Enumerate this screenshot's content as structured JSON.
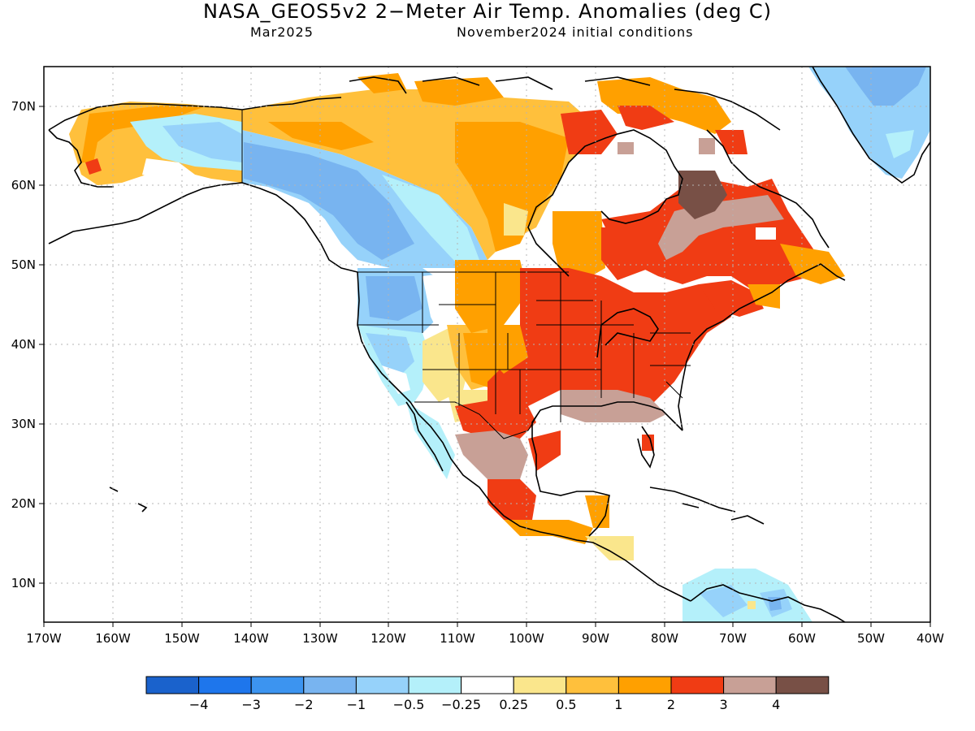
{
  "title": "NASA_GEOS5v2 2−Meter Air Temp. Anomalies (deg C)",
  "valid_month": "Mar2025",
  "init_conditions": "November2024 initial conditions",
  "lon_ticks": [
    "170W",
    "160W",
    "150W",
    "140W",
    "130W",
    "120W",
    "110W",
    "100W",
    "90W",
    "80W",
    "70W",
    "60W",
    "50W",
    "40W"
  ],
  "lat_ticks": [
    "70N",
    "60N",
    "50N",
    "40N",
    "30N",
    "20N",
    "10N"
  ],
  "colorbar": {
    "colors": [
      "#1a62cc",
      "#1e76ec",
      "#3c94f0",
      "#78b4f0",
      "#96d2fa",
      "#b4f0fa",
      "#ffffff",
      "#fae68c",
      "#ffc03c",
      "#ffa000",
      "#f03c14",
      "#c8a096",
      "#785046"
    ],
    "labels": [
      "−4",
      "−3",
      "−2",
      "−1",
      "−0.5",
      "−0.25",
      "0.25",
      "0.5",
      "1",
      "2",
      "3",
      "4"
    ]
  },
  "regions": [
    {
      "name": "alaska",
      "anomaly": "0.5 to 2"
    },
    {
      "name": "western-canada",
      "anomaly": "-0.25 to -2"
    },
    {
      "name": "northern-canada",
      "anomaly": "0.5 to 2"
    },
    {
      "name": "pacific-northwest-us",
      "anomaly": "-0.5 to -1"
    },
    {
      "name": "california-great-basin",
      "anomaly": "-0.25 to -0.5"
    },
    {
      "name": "central-eastern-us",
      "anomaly": "2 to 3"
    },
    {
      "name": "gulf-coast-northern-mexico",
      "anomaly": "3 to 4"
    },
    {
      "name": "quebec-labrador",
      "anomaly": "3 to >4"
    },
    {
      "name": "greenland",
      "anomaly": "-0.5 to -2"
    },
    {
      "name": "caribbean-south-america",
      "anomaly": "-0.25 to -2"
    }
  ]
}
